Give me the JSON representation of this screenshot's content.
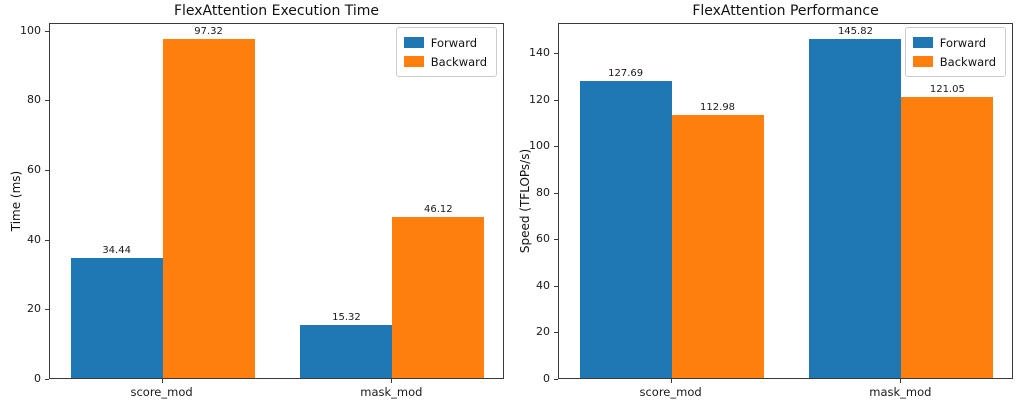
{
  "page": {
    "background": "#ffffff"
  },
  "chart_data": [
    {
      "type": "bar",
      "title": "FlexAttention Execution Time",
      "xlabel": "",
      "ylabel": "Time (ms)",
      "categories": [
        "score_mod",
        "mask_mod"
      ],
      "series": [
        {
          "name": "Forward",
          "color": "#1f77b4",
          "values": [
            34.44,
            15.32
          ]
        },
        {
          "name": "Backward",
          "color": "#ff7f0e",
          "values": [
            97.32,
            46.12
          ]
        }
      ],
      "yticks": [
        0,
        20,
        40,
        60,
        80,
        100
      ],
      "ylim": [
        0,
        102.2
      ],
      "grid": false,
      "legend_position": "upper right",
      "bar_value_labels": [
        "34.44",
        "97.32",
        "15.32",
        "46.12"
      ]
    },
    {
      "type": "bar",
      "title": "FlexAttention Performance",
      "xlabel": "",
      "ylabel": "Speed (TFLOPs/s)",
      "categories": [
        "score_mod",
        "mask_mod"
      ],
      "series": [
        {
          "name": "Forward",
          "color": "#1f77b4",
          "values": [
            127.69,
            145.82
          ]
        },
        {
          "name": "Backward",
          "color": "#ff7f0e",
          "values": [
            112.98,
            121.05
          ]
        }
      ],
      "yticks": [
        0,
        20,
        40,
        60,
        80,
        100,
        120,
        140
      ],
      "ylim": [
        0,
        153.1
      ],
      "grid": false,
      "legend_position": "upper right",
      "bar_value_labels": [
        "127.69",
        "112.98",
        "145.82",
        "121.05"
      ]
    }
  ]
}
